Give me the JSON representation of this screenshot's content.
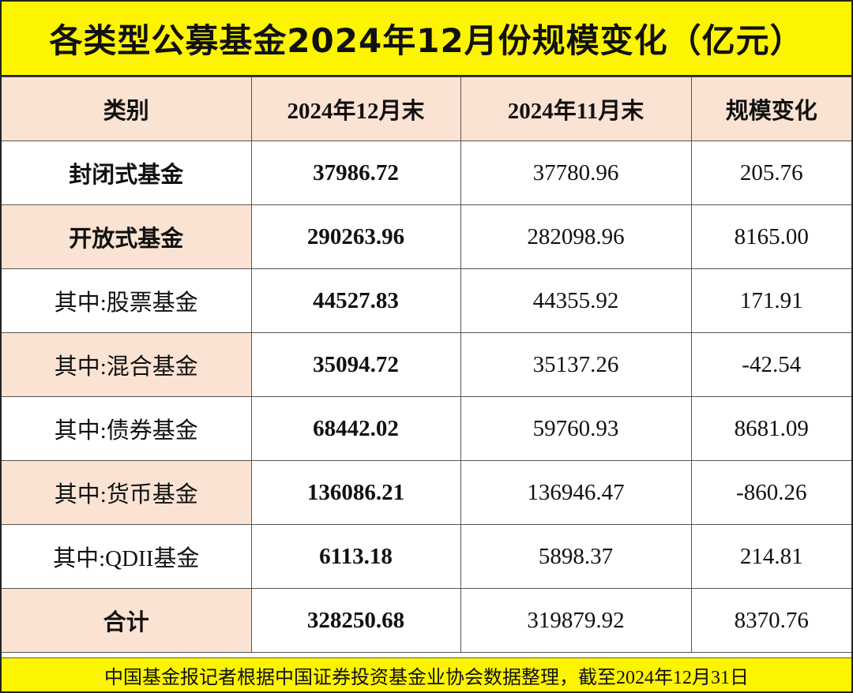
{
  "header": {
    "title": "各类型公募基金2024年12月份规模变化（亿元）"
  },
  "table": {
    "columns": [
      "类别",
      "2024年12月末",
      "2024年11月末",
      "规模变化"
    ],
    "rows": [
      [
        "封闭式基金",
        "37986.72",
        "37780.96",
        "205.76"
      ],
      [
        "开放式基金",
        "290263.96",
        "282098.96",
        "8165.00"
      ],
      [
        "其中:股票基金",
        "44527.83",
        "44355.92",
        "171.91"
      ],
      [
        "其中:混合基金",
        "35094.72",
        "35137.26",
        "-42.54"
      ],
      [
        "其中:债券基金",
        "68442.02",
        "59760.93",
        "8681.09"
      ],
      [
        "其中:货币基金",
        "136086.21",
        "136946.47",
        "-860.26"
      ],
      [
        "其中:QDII基金",
        "6113.18",
        "5898.37",
        "214.81"
      ],
      [
        "合计",
        "328250.68",
        "319879.92",
        "8370.76"
      ]
    ]
  },
  "footer": {
    "note": "中国基金报记者根据中国证券投资基金业协会数据整理，截至2024年12月31日"
  }
}
